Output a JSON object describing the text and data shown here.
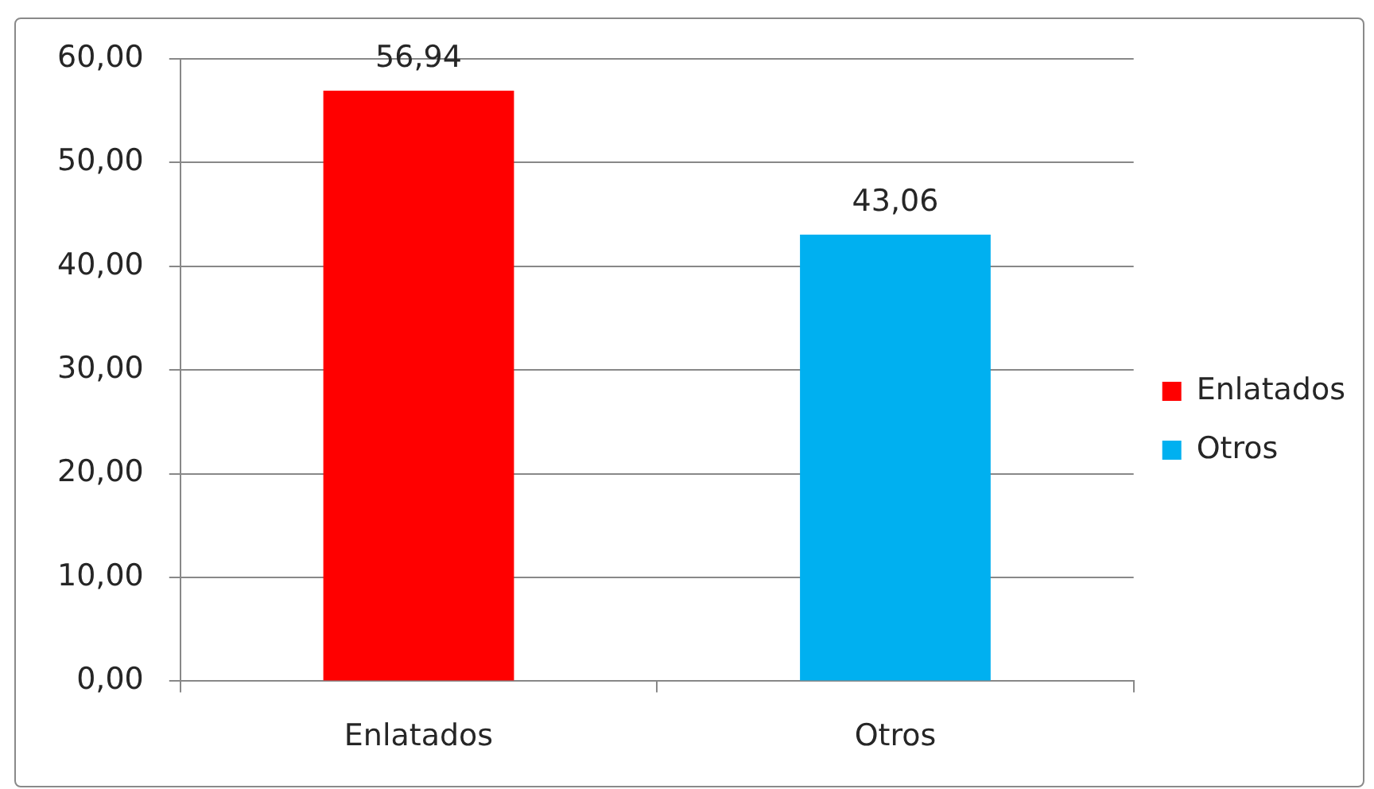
{
  "chart_data": {
    "type": "bar",
    "categories": [
      "Enlatados",
      "Otros"
    ],
    "series": [
      {
        "name": "Enlatados",
        "color": "#ff0000",
        "values": [
          56.94,
          null
        ],
        "value_labels": [
          "56,94",
          null
        ]
      },
      {
        "name": "Otros",
        "color": "#00b0f0",
        "values": [
          null,
          43.06
        ],
        "value_labels": [
          null,
          "43,06"
        ]
      }
    ],
    "ylim": [
      0,
      60
    ],
    "yticks": [
      {
        "value": 0,
        "label": "0,00"
      },
      {
        "value": 10,
        "label": "10,00"
      },
      {
        "value": 20,
        "label": "20,00"
      },
      {
        "value": 30,
        "label": "30,00"
      },
      {
        "value": 40,
        "label": "40,00"
      },
      {
        "value": 50,
        "label": "50,00"
      },
      {
        "value": 60,
        "label": "60,00"
      }
    ],
    "grid": "y",
    "legend": "right"
  }
}
